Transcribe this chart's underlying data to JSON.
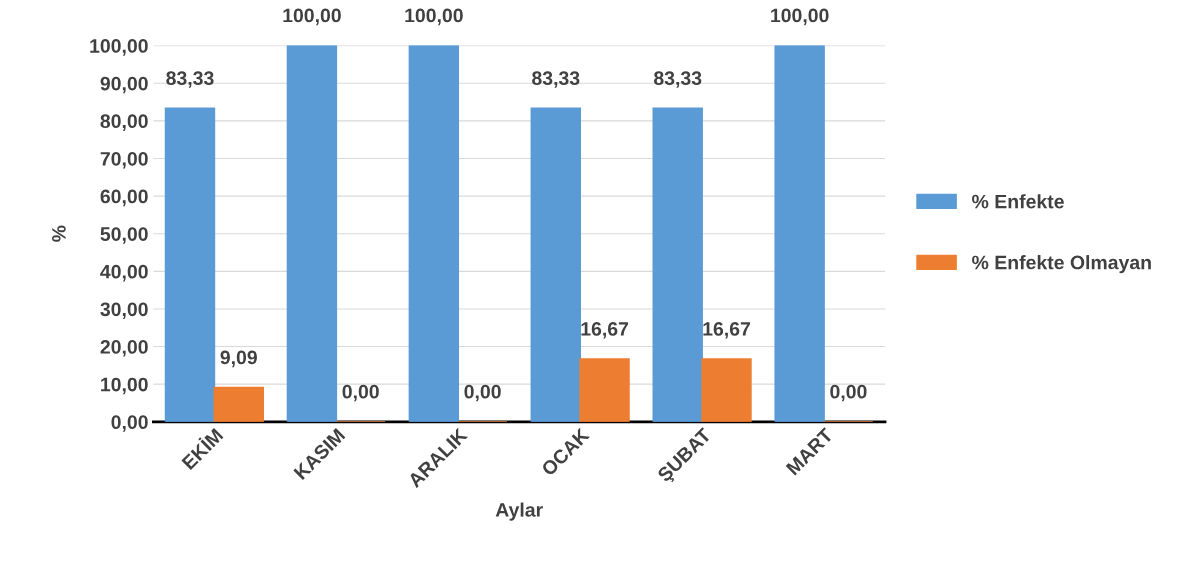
{
  "chart_data": {
    "type": "bar",
    "xlabel": "Aylar",
    "ylabel": "%",
    "categories": [
      "EKİM",
      "KASIM",
      "ARALIK",
      "OCAK",
      "ŞUBAT",
      "MART"
    ],
    "series": [
      {
        "name": "% Enfekte",
        "color": "#5b9bd5",
        "values": [
          83.33,
          100,
          100,
          83.33,
          83.33,
          100
        ],
        "value_labels": [
          "83,33",
          "100,00",
          "100,00",
          "83,33",
          "83,33",
          "100,00"
        ]
      },
      {
        "name": "% Enfekte Olmayan",
        "color": "#ed7d31",
        "values": [
          9.09,
          0,
          0,
          16.67,
          16.67,
          0
        ],
        "value_labels": [
          "9,09",
          "0,00",
          "0,00",
          "16,67",
          "16,67",
          "0,00"
        ]
      }
    ],
    "ylim": [
      0,
      100
    ],
    "yticks": [
      {
        "value": 0,
        "label": "0,00"
      },
      {
        "value": 10,
        "label": "10,00"
      },
      {
        "value": 20,
        "label": "20,00"
      },
      {
        "value": 30,
        "label": "30,00"
      },
      {
        "value": 40,
        "label": "40,00"
      },
      {
        "value": 50,
        "label": "50,00"
      },
      {
        "value": 60,
        "label": "60,00"
      },
      {
        "value": 70,
        "label": "70,00"
      },
      {
        "value": 80,
        "label": "80,00"
      },
      {
        "value": 90,
        "label": "90,00"
      },
      {
        "value": 100,
        "label": "100,00"
      }
    ],
    "grid": "y",
    "legend": "right"
  }
}
